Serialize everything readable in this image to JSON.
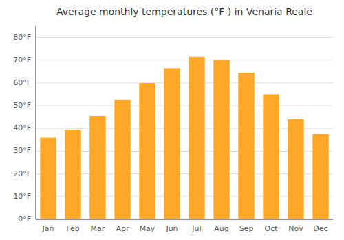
{
  "chart_data": {
    "type": "bar",
    "title": "Average monthly temperatures (°F ) in Venaria Reale",
    "categories": [
      "Jan",
      "Feb",
      "Mar",
      "Apr",
      "May",
      "Jun",
      "Jul",
      "Aug",
      "Sep",
      "Oct",
      "Nov",
      "Dec"
    ],
    "values": [
      36,
      39.5,
      45.5,
      52.5,
      60,
      66.5,
      71.5,
      70,
      64.5,
      55,
      44,
      37.5
    ],
    "color": "#FFA726",
    "ylim": [
      0,
      85
    ],
    "yticks": [
      {
        "value": 0,
        "label": "0°F"
      },
      {
        "value": 10,
        "label": "10°F"
      },
      {
        "value": 20,
        "label": "20°F"
      },
      {
        "value": 30,
        "label": "30°F"
      },
      {
        "value": 40,
        "label": "40°F"
      },
      {
        "value": 50,
        "label": "50°F"
      },
      {
        "value": 60,
        "label": "60°F"
      },
      {
        "value": 70,
        "label": "70°F"
      },
      {
        "value": 80,
        "label": "80°F"
      }
    ],
    "grid": true
  }
}
